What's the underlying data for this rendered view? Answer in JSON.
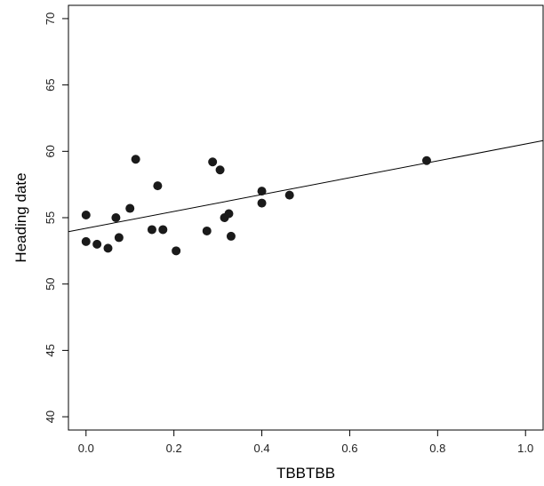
{
  "chart_data": {
    "type": "scatter",
    "title": "",
    "xlabel": "TBBTBB",
    "ylabel": "Heading date",
    "xlim": [
      -0.04,
      1.04
    ],
    "ylim": [
      39,
      71
    ],
    "x_ticks": [
      "0.0",
      "0.2",
      "0.4",
      "0.6",
      "0.8",
      "1.0"
    ],
    "y_ticks": [
      "40",
      "45",
      "50",
      "55",
      "60",
      "65",
      "70"
    ],
    "grid": false,
    "legend": "none",
    "points": [
      {
        "x": 0.0,
        "y": 55.2
      },
      {
        "x": 0.0,
        "y": 53.2
      },
      {
        "x": 0.025,
        "y": 53.0
      },
      {
        "x": 0.05,
        "y": 52.7
      },
      {
        "x": 0.068,
        "y": 55.0
      },
      {
        "x": 0.075,
        "y": 53.5
      },
      {
        "x": 0.1,
        "y": 55.7
      },
      {
        "x": 0.113,
        "y": 59.4
      },
      {
        "x": 0.15,
        "y": 54.1
      },
      {
        "x": 0.163,
        "y": 57.4
      },
      {
        "x": 0.175,
        "y": 54.1
      },
      {
        "x": 0.205,
        "y": 52.5
      },
      {
        "x": 0.275,
        "y": 54.0
      },
      {
        "x": 0.288,
        "y": 59.2
      },
      {
        "x": 0.305,
        "y": 58.6
      },
      {
        "x": 0.315,
        "y": 55.0
      },
      {
        "x": 0.325,
        "y": 55.3
      },
      {
        "x": 0.33,
        "y": 53.6
      },
      {
        "x": 0.4,
        "y": 57.0
      },
      {
        "x": 0.4,
        "y": 56.1
      },
      {
        "x": 0.463,
        "y": 56.7
      },
      {
        "x": 0.775,
        "y": 59.3
      }
    ],
    "fit_line": {
      "intercept": 54.2,
      "slope": 6.35
    },
    "colors": {
      "points": "#1a1a1a",
      "line": "#000000",
      "axes": "#000000"
    }
  }
}
